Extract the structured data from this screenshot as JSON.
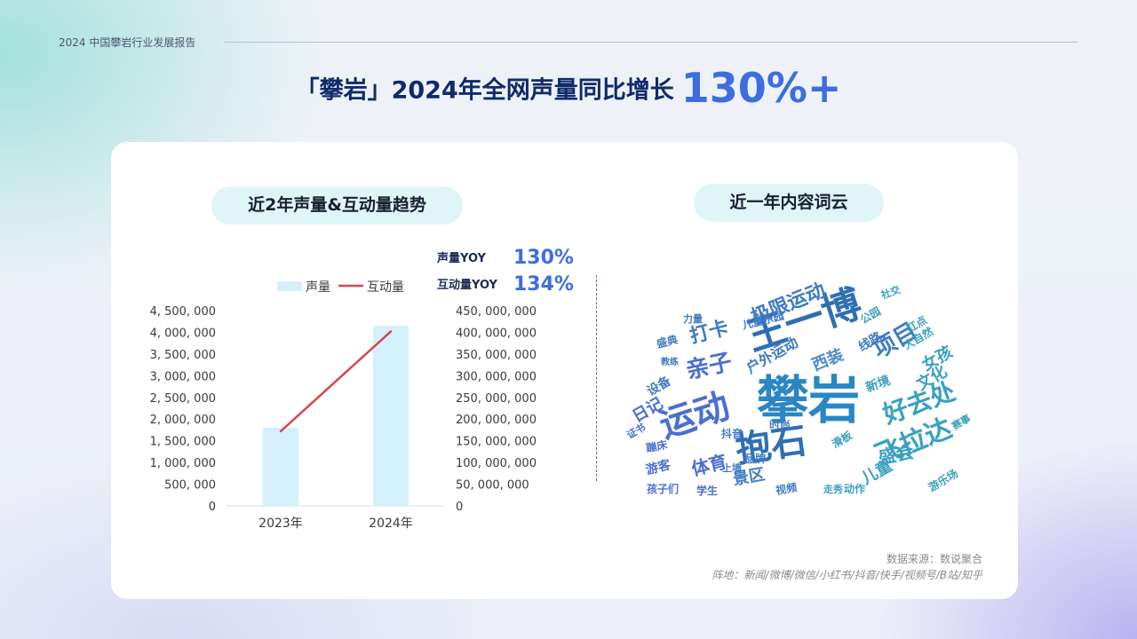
{
  "header": {
    "report_title": "2024 中国攀岩行业发展报告"
  },
  "title": {
    "text": "「攀岩」2024年全网声量同比增长",
    "highlight": "130%+"
  },
  "left_panel": {
    "title": "近2年声量&互动量趋势"
  },
  "right_panel": {
    "title": "近一年内容词云"
  },
  "yoy": [
    {
      "label": "声量YOY",
      "value": "130%"
    },
    {
      "label": "互动量YOY",
      "value": "134%"
    }
  ],
  "chart_data": {
    "type": "bar",
    "categories": [
      "2023年",
      "2024年"
    ],
    "series": [
      {
        "name": "声量",
        "type": "bar",
        "axis": "left",
        "values": [
          1800000,
          4150000
        ],
        "color": "#d4f1fb"
      },
      {
        "name": "互动量",
        "type": "line",
        "axis": "right",
        "values": [
          172000000,
          402000000
        ],
        "color": "#d9444f"
      }
    ],
    "left_axis": {
      "ylim": [
        0,
        4500000
      ],
      "ticks": [
        "4, 500, 000",
        "4, 000, 000",
        "3, 500, 000",
        "3, 000, 000",
        "2, 500, 000",
        "2, 000, 000",
        "1, 500, 000",
        "1, 000, 000",
        "500, 000",
        "0"
      ]
    },
    "right_axis": {
      "ylim": [
        0,
        450000000
      ],
      "ticks": [
        "450, 000, 000",
        "400, 000, 000",
        "350, 000, 000",
        "300, 000, 000",
        "250, 000, 000",
        "200, 000, 000",
        "150, 000, 000",
        "100, 000, 000",
        "50, 000, 000",
        "0"
      ]
    },
    "legend_position": "top"
  },
  "wordcloud": {
    "words": [
      "攀岩",
      "王一博",
      "抱石",
      "运动",
      "极限运动",
      "项目",
      "飞拉达",
      "好去处",
      "亲子",
      "打卡",
      "体育",
      "文化",
      "女孩",
      "西装",
      "盛会",
      "户外运动",
      "日记",
      "设备",
      "景区",
      "儿童",
      "游客",
      "儿童乐园",
      "线路",
      "新境",
      "大自然",
      "红点",
      "滑板",
      "抖音",
      "时尚",
      "视频",
      "孩子们",
      "学生",
      "走秀",
      "动作",
      "游乐场",
      "赛事",
      "公园",
      "社交",
      "品牌",
      "上墙",
      "蹦床",
      "盛典",
      "证书",
      "教练",
      "力量"
    ]
  },
  "source": {
    "line1": "数据来源：数说聚合",
    "line2": "阵地：新闻/微博/微信/小红书/抖音/快手/视频号/B站/知乎"
  }
}
